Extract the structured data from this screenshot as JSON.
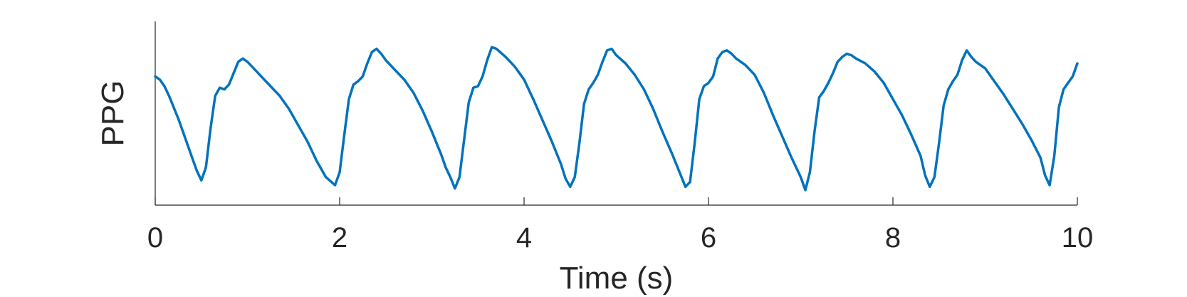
{
  "chart_data": {
    "type": "line",
    "title": "",
    "xlabel": "Time (s)",
    "ylabel": "PPG",
    "xlim": [
      0,
      10
    ],
    "ylim": [
      0,
      1
    ],
    "x_ticks": [
      0,
      2,
      4,
      6,
      8,
      10
    ],
    "x_tick_labels": [
      "0",
      "2",
      "4",
      "6",
      "8",
      "10"
    ],
    "y_ticks_visible": false,
    "grid": false,
    "legend": "none",
    "series": [
      {
        "color": "#0072BD",
        "x": [
          0,
          0.05,
          0.1,
          0.15,
          0.2,
          0.25,
          0.3,
          0.35,
          0.4,
          0.45,
          0.5,
          0.55,
          0.6,
          0.65,
          0.7,
          0.75,
          0.8,
          0.85,
          0.9,
          0.95,
          1.0,
          1.05,
          1.1,
          1.15,
          1.25,
          1.35,
          1.45,
          1.55,
          1.65,
          1.75,
          1.85,
          1.95,
          2.0,
          2.05,
          2.1,
          2.15,
          2.2,
          2.25,
          2.3,
          2.35,
          2.4,
          2.45,
          2.5,
          2.6,
          2.7,
          2.8,
          2.9,
          3.0,
          3.1,
          3.15,
          3.2,
          3.25,
          3.3,
          3.35,
          3.4,
          3.45,
          3.5,
          3.55,
          3.6,
          3.65,
          3.7,
          3.8,
          3.9,
          4.0,
          4.1,
          4.2,
          4.3,
          4.4,
          4.45,
          4.5,
          4.55,
          4.6,
          4.65,
          4.7,
          4.75,
          4.8,
          4.85,
          4.9,
          4.95,
          5.0,
          5.1,
          5.2,
          5.3,
          5.4,
          5.5,
          5.6,
          5.7,
          5.75,
          5.8,
          5.85,
          5.9,
          5.95,
          6.0,
          6.05,
          6.1,
          6.15,
          6.2,
          6.25,
          6.3,
          6.4,
          6.5,
          6.6,
          6.7,
          6.8,
          6.9,
          7.0,
          7.05,
          7.1,
          7.15,
          7.2,
          7.25,
          7.3,
          7.35,
          7.4,
          7.45,
          7.5,
          7.55,
          7.6,
          7.7,
          7.8,
          7.9,
          8.0,
          8.1,
          8.2,
          8.3,
          8.35,
          8.4,
          8.45,
          8.5,
          8.55,
          8.6,
          8.65,
          8.7,
          8.75,
          8.8,
          8.85,
          8.9,
          9.0,
          9.1,
          9.2,
          9.3,
          9.4,
          9.5,
          9.6,
          9.65,
          9.7,
          9.75,
          9.8,
          9.85,
          9.9,
          9.95,
          10.0
        ],
        "y": [
          0.74,
          0.72,
          0.68,
          0.62,
          0.55,
          0.48,
          0.4,
          0.32,
          0.24,
          0.16,
          0.1,
          0.18,
          0.42,
          0.62,
          0.67,
          0.66,
          0.69,
          0.76,
          0.83,
          0.85,
          0.83,
          0.8,
          0.77,
          0.74,
          0.68,
          0.62,
          0.54,
          0.44,
          0.34,
          0.22,
          0.12,
          0.07,
          0.15,
          0.38,
          0.6,
          0.69,
          0.71,
          0.74,
          0.82,
          0.89,
          0.91,
          0.88,
          0.84,
          0.78,
          0.72,
          0.64,
          0.53,
          0.4,
          0.26,
          0.18,
          0.12,
          0.05,
          0.12,
          0.35,
          0.58,
          0.67,
          0.68,
          0.74,
          0.84,
          0.92,
          0.91,
          0.86,
          0.8,
          0.72,
          0.6,
          0.47,
          0.34,
          0.2,
          0.11,
          0.06,
          0.12,
          0.33,
          0.57,
          0.66,
          0.7,
          0.75,
          0.83,
          0.9,
          0.91,
          0.87,
          0.82,
          0.75,
          0.66,
          0.54,
          0.4,
          0.27,
          0.13,
          0.06,
          0.09,
          0.33,
          0.6,
          0.68,
          0.7,
          0.74,
          0.85,
          0.89,
          0.9,
          0.88,
          0.85,
          0.81,
          0.75,
          0.64,
          0.5,
          0.37,
          0.24,
          0.12,
          0.04,
          0.15,
          0.4,
          0.61,
          0.65,
          0.7,
          0.76,
          0.83,
          0.86,
          0.88,
          0.87,
          0.85,
          0.82,
          0.77,
          0.7,
          0.6,
          0.5,
          0.38,
          0.25,
          0.13,
          0.06,
          0.12,
          0.33,
          0.56,
          0.66,
          0.71,
          0.75,
          0.84,
          0.9,
          0.86,
          0.83,
          0.79,
          0.71,
          0.63,
          0.54,
          0.45,
          0.35,
          0.24,
          0.13,
          0.07,
          0.25,
          0.55,
          0.66,
          0.7,
          0.74,
          0.82
        ]
      }
    ]
  }
}
